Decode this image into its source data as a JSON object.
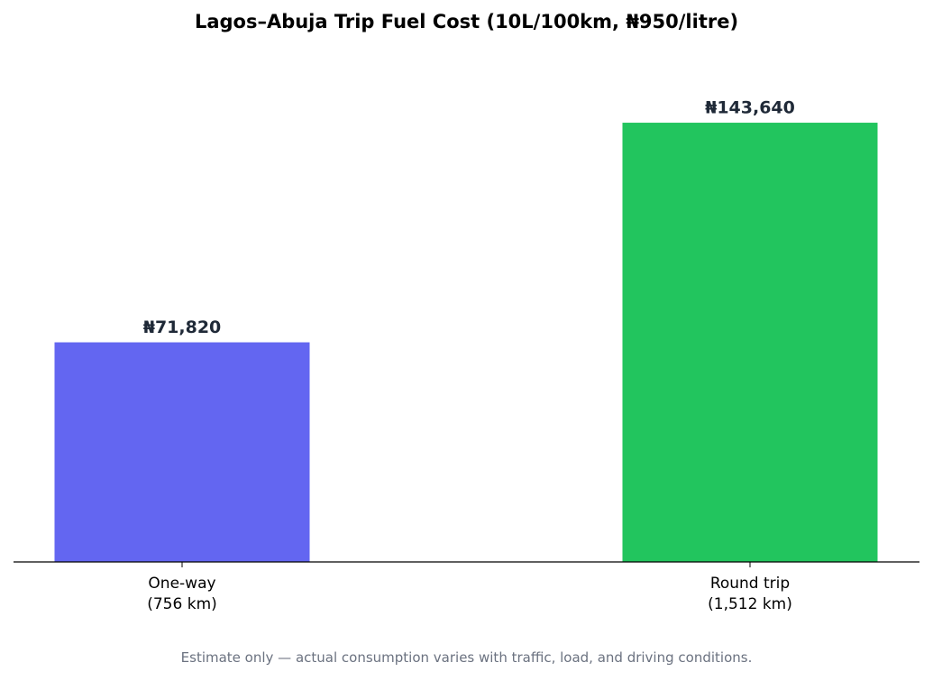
{
  "chart_data": {
    "type": "bar",
    "title": "Lagos–Abuja Trip Fuel Cost (10L/100km, ₦950/litre)",
    "categories": [
      "One-way\n(756 km)",
      "Round trip\n(1,512 km)"
    ],
    "values": [
      71820,
      143640
    ],
    "value_labels": [
      "₦71,820",
      "₦143,640"
    ],
    "colors": [
      "#6366f1",
      "#22c55e"
    ],
    "ylim": [
      0,
      165186
    ],
    "footnote": "Estimate only — actual consumption varies with traffic, load, and driving conditions."
  }
}
